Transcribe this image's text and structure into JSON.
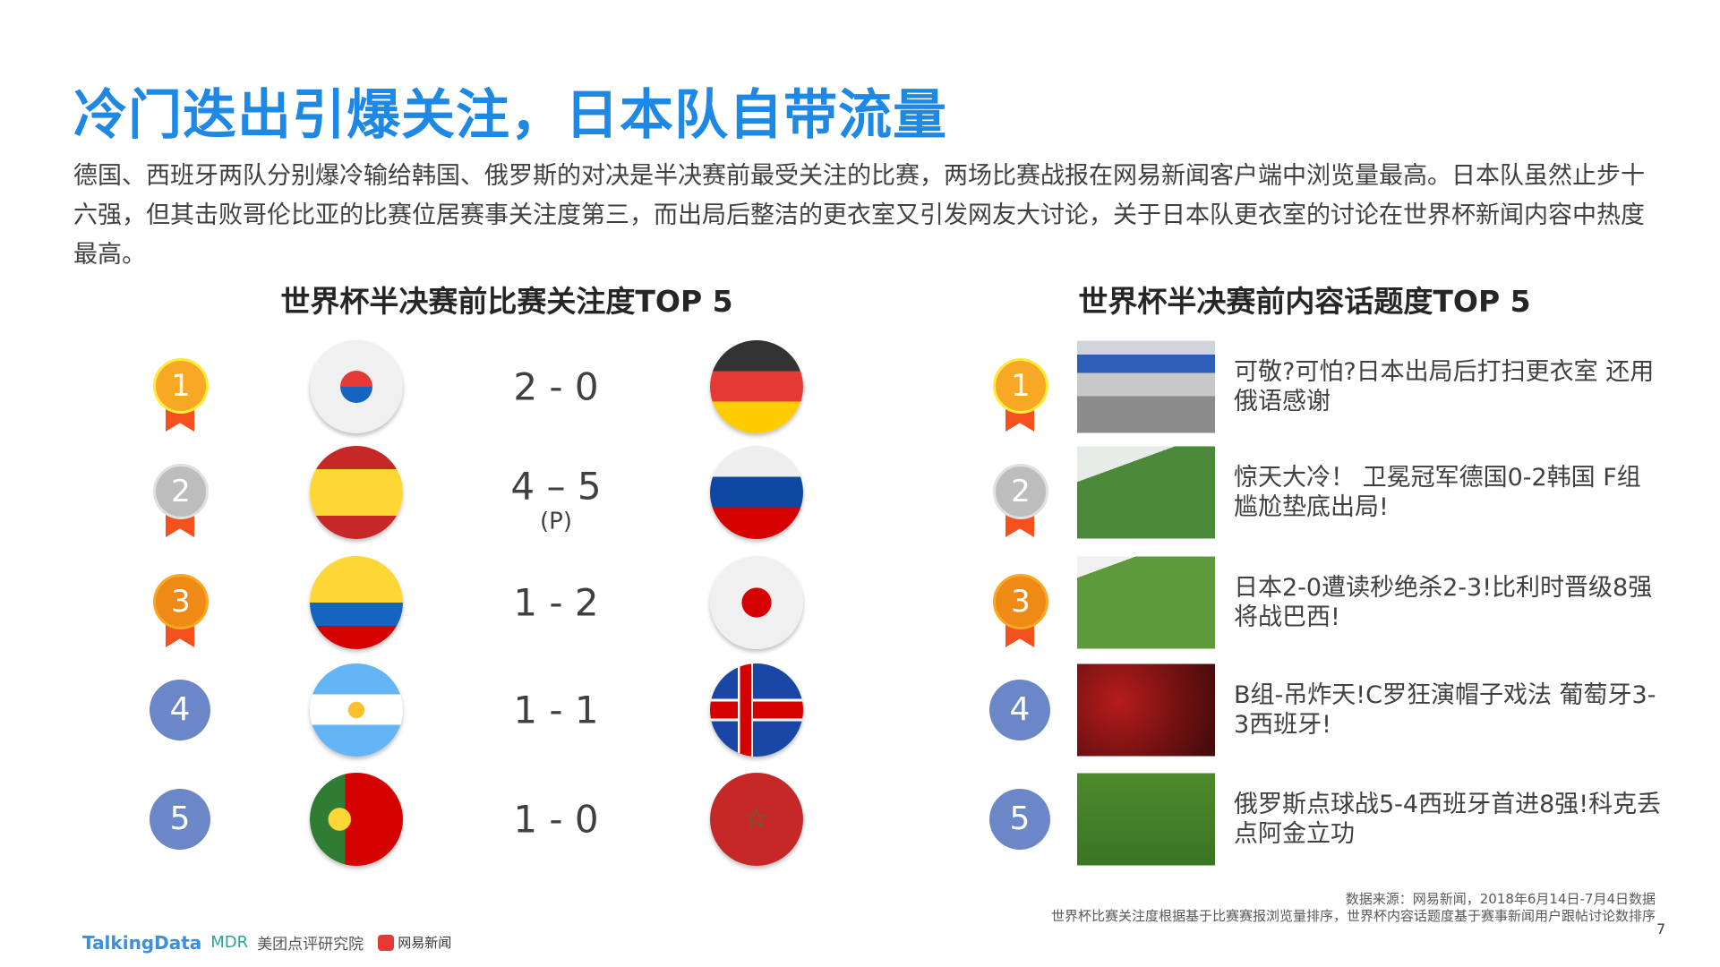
{
  "title": "冷门迭出引爆关注，日本队自带流量",
  "intro": "德国、西班牙两队分别爆冷输给韩国、俄罗斯的对决是半决赛前最受关注的比赛，两场比赛战报在网易新闻客户端中浏览量最高。日本队虽然止步十六强，但其击败哥伦比亚的比赛位居赛事关注度第三，而出局后整洁的更衣室又引发网友大讨论，关于日本队更衣室的讨论在世界杯新闻内容中热度最高。",
  "left": {
    "heading": "世界杯半决赛前比赛关注度TOP 5",
    "rows": [
      {
        "rank": "1",
        "team1": "korea",
        "score": "2 - 0",
        "note": "",
        "team2": "germany"
      },
      {
        "rank": "2",
        "team1": "spain",
        "score": "4 – 5",
        "note": "(P)",
        "team2": "russia"
      },
      {
        "rank": "3",
        "team1": "colombia",
        "score": "1 - 2",
        "note": "",
        "team2": "japan"
      },
      {
        "rank": "4",
        "team1": "argentina",
        "score": "1 - 1",
        "note": "",
        "team2": "iceland"
      },
      {
        "rank": "5",
        "team1": "portugal",
        "score": "1 - 0",
        "note": "",
        "team2": "morocco"
      }
    ]
  },
  "right": {
    "heading": "世界杯半决赛前内容话题度TOP 5",
    "items": [
      {
        "rank": "1",
        "text": "可敬?可怕?日本出局后打扫更衣室 还用俄语感谢"
      },
      {
        "rank": "2",
        "text": "惊天大冷！ 卫冕冠军德国0-2韩国 F组尴尬垫底出局!"
      },
      {
        "rank": "3",
        "text": "日本2-0遭读秒绝杀2-3!比利时晋级8强将战巴西!"
      },
      {
        "rank": "4",
        "text": "B组-吊炸天!C罗狂演帽子戏法 葡萄牙3-3西班牙!"
      },
      {
        "rank": "5",
        "text": "俄罗斯点球战5-4西班牙首进8强!科克丢点阿金立功"
      }
    ]
  },
  "footer": {
    "source": "数据来源：网易新闻，2018年6月14日-7月4日数据",
    "note": "世界杯比赛关注度根据基于比赛赛报浏览量排序，世界杯内容话题度基于赛事新闻用户跟帖讨论数排序",
    "page": "7",
    "logos": [
      "TalkingData",
      "MDR",
      "美团点评研究院",
      "网易新闻"
    ]
  },
  "colors": {
    "title": "#1e88e5",
    "gold": "#f9a825",
    "silver": "#bdbdbd",
    "bronze": "#ef8a17",
    "rank_blue": "#6c87c8",
    "ribbon": "#f4511e"
  }
}
